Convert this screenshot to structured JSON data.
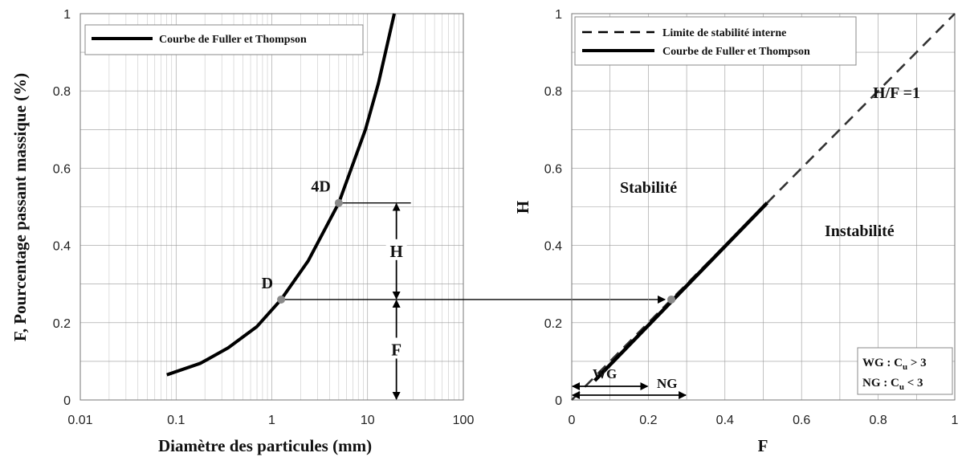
{
  "chart_data": [
    {
      "type": "line",
      "xscale": "log",
      "xlim": [
        0.01,
        100
      ],
      "ylim": [
        0,
        1
      ],
      "x_ticks": [
        "0.01",
        "0.1",
        "1",
        "10",
        "100"
      ],
      "y_ticks": [
        "0",
        "0.2",
        "0.4",
        "0.6",
        "0.8",
        "1"
      ],
      "xlabel": "Diamètre des particules (mm)",
      "ylabel": "F, Pourcentage passant massique (%)",
      "grid": true,
      "legend_position": "top-left",
      "series": [
        {
          "name": "Courbe de Fuller et Thompson",
          "style": "solid",
          "x": [
            0.08,
            0.18,
            0.35,
            0.7,
            1.25,
            2.4,
            5.0,
            9.5,
            13.0,
            19.0
          ],
          "y": [
            0.065,
            0.095,
            0.135,
            0.19,
            0.26,
            0.36,
            0.51,
            0.7,
            0.82,
            1.0
          ]
        }
      ],
      "points": [
        {
          "label": "D",
          "x": 1.25,
          "y": 0.26
        },
        {
          "label": "4D",
          "x": 5.0,
          "y": 0.51
        }
      ],
      "annotations": {
        "H": {
          "label": "H",
          "x": 20,
          "y_from": 0.26,
          "y_to": 0.51
        },
        "F": {
          "label": "F",
          "x": 20,
          "y_from": 0,
          "y_to": 0.26
        }
      }
    },
    {
      "type": "line",
      "xlim": [
        0,
        1
      ],
      "ylim": [
        0,
        1
      ],
      "x_ticks": [
        "0",
        "0.2",
        "0.4",
        "0.6",
        "0.8",
        "1"
      ],
      "y_ticks": [
        "0",
        "0.2",
        "0.4",
        "0.6",
        "0.8",
        "1"
      ],
      "xlabel": "F",
      "ylabel": "H",
      "grid": true,
      "legend_position": "top-right",
      "series": [
        {
          "name": "Limite de stabilité interne",
          "style": "dashed",
          "x": [
            0,
            1
          ],
          "y": [
            0,
            1
          ]
        },
        {
          "name": "Courbe de Fuller et Thompson",
          "style": "solid",
          "x": [
            0.06,
            0.51
          ],
          "y": [
            0.05,
            0.51
          ]
        }
      ],
      "points": [
        {
          "x": 0.26,
          "y": 0.26
        }
      ],
      "labels": {
        "diagonal": "H/F =1",
        "stable": "Stabilité",
        "unstable": "Instabilité"
      },
      "ranges": [
        {
          "label": "WG",
          "from": 0,
          "to": 0.2
        },
        {
          "label": "NG",
          "from": 0,
          "to": 0.3
        }
      ],
      "criteria": {
        "wg_prefix": "WG : C",
        "wg_sub": "u",
        "wg_suffix": " > 3",
        "ng_prefix": "NG : C",
        "ng_sub": "u",
        "ng_suffix": " < 3"
      }
    }
  ],
  "colors": {
    "curve": "#000000",
    "grid": "#9a9a9a",
    "marker": "#8a8a8a"
  }
}
